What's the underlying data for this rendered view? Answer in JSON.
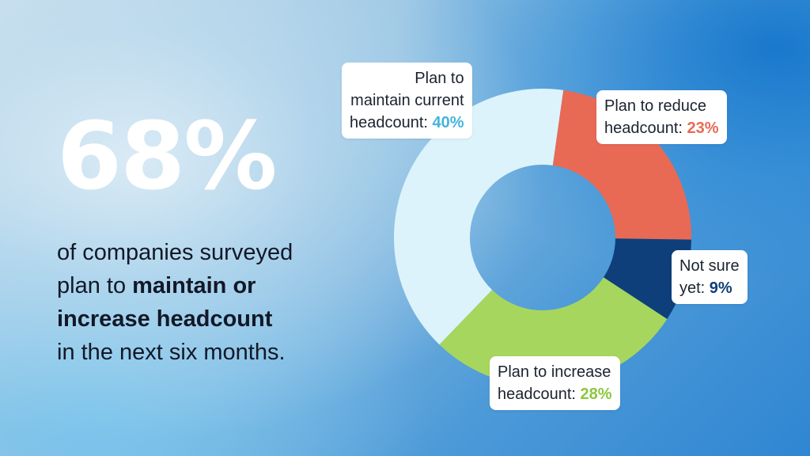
{
  "headline": {
    "big_stat": "68%",
    "line1": "of companies surveyed",
    "line2_plain": "plan to ",
    "line2_bold": "maintain or",
    "line3_bold": "increase headcount",
    "line4": "in the next six months."
  },
  "callouts": {
    "maintain": {
      "line1": "Plan to",
      "line2": "maintain current",
      "line3": "headcount: ",
      "pct": "40%"
    },
    "reduce": {
      "line1": "Plan to reduce",
      "line2": "headcount: ",
      "pct": "23%"
    },
    "notsure": {
      "line1": "Not sure",
      "line2": "yet: ",
      "pct": "9%"
    },
    "increase": {
      "line1": "Plan to increase",
      "line2": "headcount: ",
      "pct": "28%"
    }
  },
  "chart_data": {
    "type": "pie",
    "variant": "donut",
    "title": "",
    "slices": [
      {
        "label": "Plan to reduce headcount",
        "value": 23,
        "color": "#e86a55"
      },
      {
        "label": "Not sure yet",
        "value": 9,
        "color": "#0f3f7a"
      },
      {
        "label": "Plan to increase headcount",
        "value": 28,
        "color": "#a6d65e"
      },
      {
        "label": "Plan to maintain current headcount",
        "value": 40,
        "color": "#dcf3fb"
      }
    ]
  },
  "colors": {
    "maintain_pct": "#45b4dc",
    "reduce_pct": "#e86a55",
    "notsure_pct": "#0f3f7a",
    "increase_pct": "#8cc63f"
  }
}
